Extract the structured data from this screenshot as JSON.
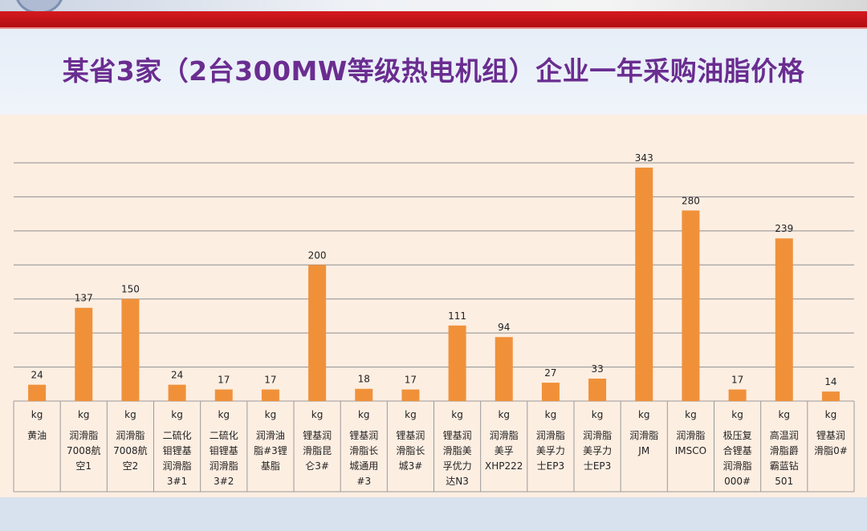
{
  "header": {
    "title": "某省3家（2台300MW等级热电机组）企业一年采购油脂价格"
  },
  "colors": {
    "bar": "#f0913a",
    "title": "#6a2d90",
    "banner_red": "#c8131a"
  },
  "chart_data": {
    "type": "bar",
    "title": "某省3家（2台300MW等级热电机组）企业一年采购油脂价格",
    "unit_row": [
      "kg",
      "kg",
      "kg",
      "kg",
      "kg",
      "kg",
      "kg",
      "kg",
      "kg",
      "kg",
      "kg",
      "kg",
      "kg",
      "kg",
      "kg",
      "kg",
      "kg",
      "kg"
    ],
    "categories": [
      "黄油",
      "润滑脂7008航空1",
      "润滑脂7008航空2",
      "二硫化钼锂基润滑脂3#1",
      "二硫化钼锂基润滑脂3#2",
      "润滑油脂#3锂基脂",
      "锂基润滑脂昆仑3#",
      "锂基润滑脂长城通用#3",
      "锂基润滑脂长城3#",
      "锂基润滑脂美孚优力达N3",
      "润滑脂美孚XHP222",
      "润滑脂美孚力士EP3",
      "润滑脂美孚力士EP3",
      "润滑脂JM",
      "润滑脂IMSCO",
      "极压复合锂基润滑脂000#",
      "高温润滑脂爵霸蓝钻501",
      "锂基润滑脂0#"
    ],
    "category_lines": [
      [
        "黄油"
      ],
      [
        "润滑脂",
        "7008航",
        "空1"
      ],
      [
        "润滑脂",
        "7008航",
        "空2"
      ],
      [
        "二硫化",
        "钼锂基",
        "润滑脂",
        "3#1"
      ],
      [
        "二硫化",
        "钼锂基",
        "润滑脂",
        "3#2"
      ],
      [
        "润滑油",
        "脂#3锂",
        "基脂"
      ],
      [
        "锂基润",
        "滑脂昆",
        "仑3#"
      ],
      [
        "锂基润",
        "滑脂长",
        "城通用",
        "#3"
      ],
      [
        "锂基润",
        "滑脂长",
        "城3#"
      ],
      [
        "锂基润",
        "滑脂美",
        "孚优力",
        "达N3"
      ],
      [
        "润滑脂",
        "美孚",
        "XHP222"
      ],
      [
        "润滑脂",
        "美孚力",
        "士EP3"
      ],
      [
        "润滑脂",
        "美孚力",
        "士EP3"
      ],
      [
        "润滑脂",
        "JM"
      ],
      [
        "润滑脂",
        "IMSCO"
      ],
      [
        "极压复",
        "合锂基",
        "润滑脂",
        "000#"
      ],
      [
        "高温润",
        "滑脂爵",
        "霸蓝钻",
        "501"
      ],
      [
        "锂基润",
        "滑脂0#"
      ]
    ],
    "values": [
      24,
      137,
      150,
      24,
      17,
      17,
      200,
      18,
      17,
      111,
      94,
      27,
      33,
      343,
      280,
      17,
      239,
      14
    ],
    "ylim": [
      0,
      350
    ],
    "grid": true,
    "xlabel": "",
    "ylabel": ""
  }
}
